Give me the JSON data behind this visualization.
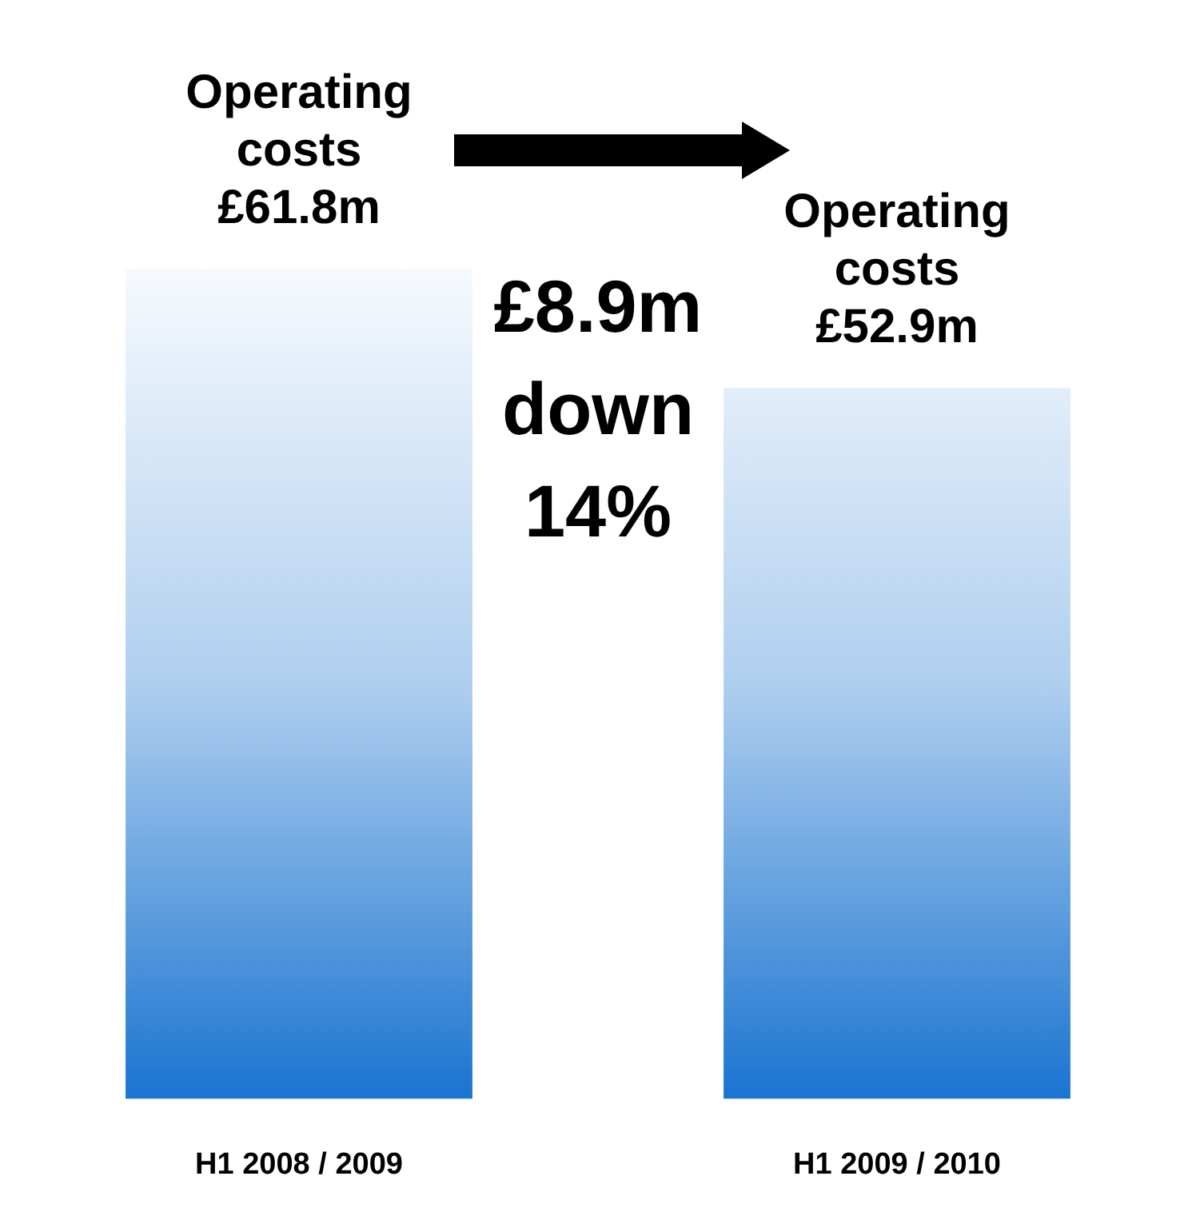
{
  "chart_data": {
    "type": "bar",
    "categories": [
      "H1 2008 / 2009",
      "H1 2009 / 2010"
    ],
    "values": [
      61.8,
      52.9
    ],
    "value_labels": [
      "£61.8m",
      "£52.9m"
    ],
    "color": "#1a74d0",
    "annotations": [
      {
        "text": "Operating costs",
        "x": "H1 2008 / 2009",
        "y": 61.8
      },
      {
        "text": "Operating costs",
        "x": "H1 2009 / 2010",
        "y": 52.9
      },
      "£8.9m down 14%"
    ],
    "grid": false,
    "legend": false
  }
}
